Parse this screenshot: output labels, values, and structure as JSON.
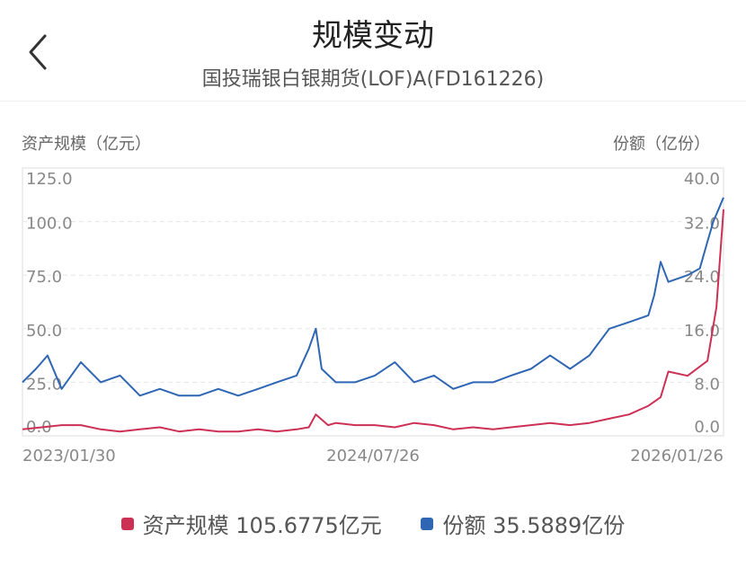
{
  "header": {
    "title": "规模变动",
    "subtitle": "国投瑞银白银期货(LOF)A(FD161226)"
  },
  "chart_data": {
    "type": "line",
    "left_axis_title": "资产规模（亿元）",
    "right_axis_title": "份额（亿份）",
    "left_ticks": [
      "125.0",
      "100.0",
      "75.0",
      "50.0",
      "25.0",
      "0.0"
    ],
    "right_ticks": [
      "40.0",
      "32.0",
      "24.0",
      "16.0",
      "8.0",
      "0.0"
    ],
    "x_ticks": [
      "2023/01/30",
      "2024/07/26",
      "2026/01/26"
    ],
    "x_range": [
      "2023-01-30",
      "2026-01-26"
    ],
    "left_ylim": [
      0,
      125
    ],
    "right_ylim": [
      0,
      40
    ],
    "grid": true,
    "series": [
      {
        "name": "资产规模",
        "axis": "left",
        "color": "#cc3155",
        "x": [
          "2023-01-30",
          "2023-03-01",
          "2023-04-01",
          "2023-05-01",
          "2023-06-01",
          "2023-07-01",
          "2023-08-01",
          "2023-09-01",
          "2023-10-01",
          "2023-11-01",
          "2023-12-01",
          "2024-01-01",
          "2024-02-01",
          "2024-03-01",
          "2024-04-01",
          "2024-04-20",
          "2024-05-01",
          "2024-05-20",
          "2024-06-01",
          "2024-07-01",
          "2024-08-01",
          "2024-09-01",
          "2024-10-01",
          "2024-11-01",
          "2024-12-01",
          "2025-01-01",
          "2025-02-01",
          "2025-03-01",
          "2025-04-01",
          "2025-05-01",
          "2025-06-01",
          "2025-07-01",
          "2025-08-01",
          "2025-09-01",
          "2025-10-01",
          "2025-10-20",
          "2025-11-01",
          "2025-12-01",
          "2026-01-01",
          "2026-01-15",
          "2026-01-26"
        ],
        "values": [
          3,
          4,
          5,
          5,
          3,
          2,
          3,
          4,
          2,
          3,
          2,
          2,
          3,
          2,
          3,
          4,
          10,
          5,
          6,
          5,
          5,
          4,
          6,
          5,
          3,
          4,
          3,
          4,
          5,
          6,
          5,
          6,
          8,
          10,
          14,
          18,
          30,
          28,
          35,
          60,
          105.7
        ]
      },
      {
        "name": "份额",
        "axis": "right",
        "color": "#2f66b3",
        "x": [
          "2023-01-30",
          "2023-02-20",
          "2023-03-10",
          "2023-04-01",
          "2023-05-01",
          "2023-06-01",
          "2023-07-01",
          "2023-08-01",
          "2023-09-01",
          "2023-10-01",
          "2023-11-01",
          "2023-12-01",
          "2024-01-01",
          "2024-02-01",
          "2024-03-01",
          "2024-04-01",
          "2024-04-20",
          "2024-05-01",
          "2024-05-10",
          "2024-06-01",
          "2024-07-01",
          "2024-08-01",
          "2024-09-01",
          "2024-10-01",
          "2024-11-01",
          "2024-12-01",
          "2025-01-01",
          "2025-02-01",
          "2025-03-01",
          "2025-04-01",
          "2025-05-01",
          "2025-06-01",
          "2025-07-01",
          "2025-08-01",
          "2025-09-01",
          "2025-10-01",
          "2025-10-10",
          "2025-10-20",
          "2025-11-01",
          "2025-12-01",
          "2025-12-20",
          "2026-01-01",
          "2026-01-10",
          "2026-01-26"
        ],
        "values": [
          8,
          10,
          12,
          7,
          11,
          8,
          9,
          6,
          7,
          6,
          6,
          7,
          6,
          7,
          8,
          9,
          13,
          16,
          10,
          8,
          8,
          9,
          11,
          8,
          9,
          7,
          8,
          8,
          9,
          10,
          12,
          10,
          12,
          16,
          17,
          18,
          21,
          26,
          23,
          24,
          25,
          29,
          32,
          35.6
        ]
      }
    ],
    "legend": [
      {
        "label": "资产规模 105.6775亿元",
        "color": "#cc3155"
      },
      {
        "label": "份额 35.5889亿份",
        "color": "#2f66b3"
      }
    ],
    "legend_position": "bottom"
  },
  "colors": {
    "grid": "#e6e6e6",
    "tick_text": "#888888",
    "accent_red": "#cc3155",
    "accent_blue": "#2f66b3"
  }
}
